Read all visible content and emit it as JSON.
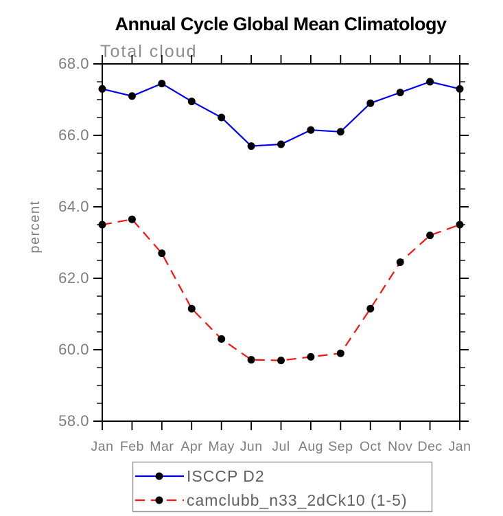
{
  "chart_data": {
    "type": "line",
    "title": "Annual Cycle Global Mean Climatology",
    "subtitle": "Total cloud",
    "ylabel": "percent",
    "ylim": [
      58.0,
      68.0
    ],
    "ytick_interval": 2.0,
    "yminor_interval": 0.5,
    "ytick_labels": [
      "58.0",
      "60.0",
      "62.0",
      "64.0",
      "66.0",
      "68.0"
    ],
    "categories": [
      "Jan",
      "Feb",
      "Mar",
      "Apr",
      "May",
      "Jun",
      "Jul",
      "Aug",
      "Sep",
      "Oct",
      "Nov",
      "Dec",
      "Jan"
    ],
    "series": [
      {
        "name": "ISCCP D2",
        "color": "#0000ee",
        "line_style": "solid",
        "marker": "filled-circle",
        "marker_color": "#000000",
        "values": [
          67.3,
          67.1,
          67.45,
          66.95,
          66.5,
          65.7,
          65.75,
          66.15,
          66.1,
          66.9,
          67.2,
          67.5,
          67.3
        ]
      },
      {
        "name": "camclubb_n33_2dCk10 (1-5)",
        "color": "#ff1111",
        "line_style": "dashed",
        "marker": "filled-circle",
        "marker_color": "#000000",
        "values": [
          63.5,
          63.65,
          62.7,
          61.15,
          60.3,
          59.72,
          59.7,
          59.8,
          59.9,
          61.15,
          62.45,
          63.2,
          63.5
        ]
      }
    ],
    "legend_position": "below",
    "grid": false
  },
  "colors": {
    "axis": "#000000",
    "label_text": "#7d7d7d",
    "subtitle_text": "#8c8c8c",
    "legend_text": "#606060",
    "legend_border": "#9a9a9a",
    "background": "#ffffff"
  }
}
